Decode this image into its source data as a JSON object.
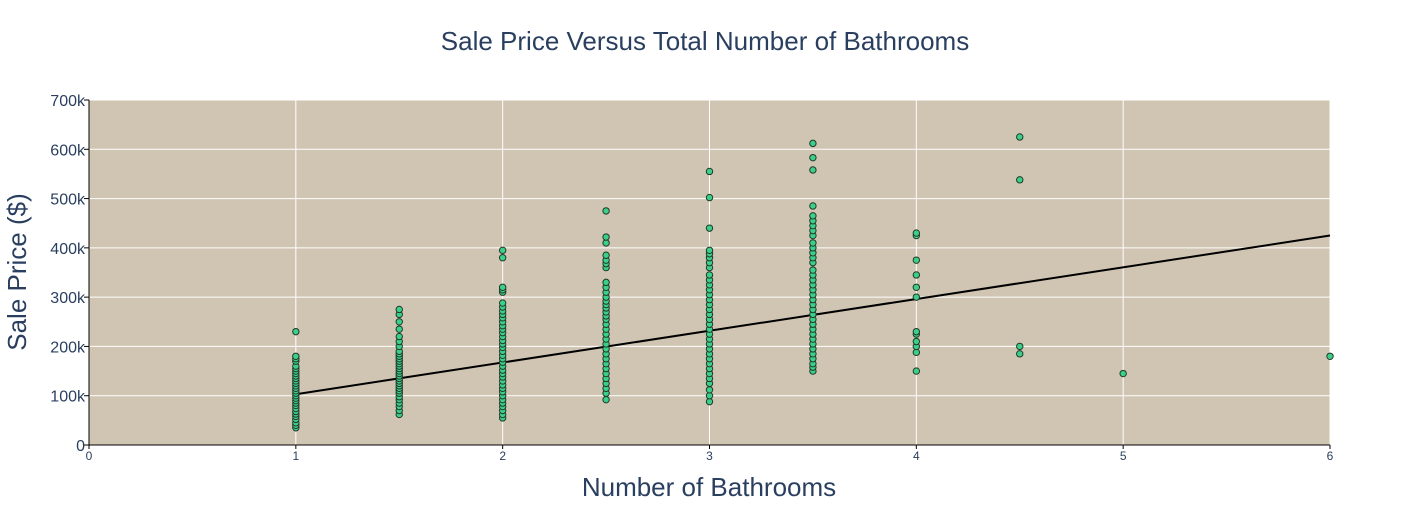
{
  "chart_data": {
    "type": "scatter",
    "title": "Sale Price Versus Total Number of Bathrooms",
    "xlabel": "Number of Bathrooms",
    "ylabel": "Sale Price ($)",
    "xlim": [
      0,
      6
    ],
    "ylim": [
      0,
      700000
    ],
    "x_ticks": [
      0,
      1,
      2,
      3,
      4,
      5,
      6
    ],
    "x_tick_labels": [
      "0",
      "1",
      "2",
      "3",
      "4",
      "5",
      "6"
    ],
    "y_ticks": [
      0,
      100000,
      200000,
      300000,
      400000,
      500000,
      600000,
      700000
    ],
    "y_tick_labels": [
      "0",
      "100k",
      "200k",
      "300k",
      "400k",
      "500k",
      "600k",
      "700k"
    ],
    "grid": true,
    "legend": false,
    "colors": {
      "plot_background": "#d0c4b3",
      "marker_fill": "#3ccf8a",
      "marker_edge": "#1f3a2a",
      "trend_line": "#000000",
      "grid": "#ffffff",
      "text": "#2a3f5f"
    },
    "series": [
      {
        "type": "scatter",
        "groups": [
          {
            "x": 1,
            "y": [
              35000,
              40000,
              45000,
              52000,
              58000,
              63000,
              68000,
              74000,
              80000,
              85000,
              90000,
              95000,
              100000,
              105000,
              110000,
              115000,
              120000,
              125000,
              130000,
              135000,
              140000,
              145000,
              150000,
              155000,
              160000,
              170000,
              175000,
              180000,
              230000
            ]
          },
          {
            "x": 1.5,
            "y": [
              62000,
              70000,
              78000,
              85000,
              92000,
              98000,
              105000,
              110000,
              115000,
              120000,
              125000,
              130000,
              135000,
              140000,
              145000,
              150000,
              155000,
              160000,
              165000,
              170000,
              175000,
              180000,
              185000,
              190000,
              200000,
              210000,
              220000,
              235000,
              250000,
              265000,
              275000
            ]
          },
          {
            "x": 2,
            "y": [
              55000,
              62000,
              70000,
              78000,
              85000,
              92000,
              100000,
              108000,
              115000,
              122000,
              130000,
              138000,
              145000,
              152000,
              160000,
              168000,
              175000,
              182000,
              190000,
              198000,
              205000,
              212000,
              220000,
              228000,
              235000,
              242000,
              250000,
              258000,
              265000,
              272000,
              280000,
              288000,
              310000,
              315000,
              320000,
              380000,
              395000
            ]
          },
          {
            "x": 2.5,
            "y": [
              92000,
              105000,
              115000,
              125000,
              135000,
              145000,
              155000,
              165000,
              175000,
              185000,
              195000,
              205000,
              215000,
              225000,
              235000,
              245000,
              255000,
              262000,
              270000,
              278000,
              285000,
              292000,
              300000,
              310000,
              320000,
              330000,
              360000,
              368000,
              375000,
              385000,
              410000,
              422000,
              475000
            ]
          },
          {
            "x": 3,
            "y": [
              88000,
              100000,
              112000,
              125000,
              135000,
              145000,
              155000,
              165000,
              175000,
              185000,
              195000,
              205000,
              215000,
              225000,
              235000,
              245000,
              255000,
              265000,
              275000,
              285000,
              295000,
              305000,
              315000,
              325000,
              335000,
              345000,
              360000,
              370000,
              380000,
              388000,
              395000,
              440000,
              502000,
              555000
            ]
          },
          {
            "x": 3.5,
            "y": [
              150000,
              158000,
              165000,
              175000,
              185000,
              195000,
              205000,
              215000,
              225000,
              235000,
              245000,
              255000,
              265000,
              275000,
              285000,
              295000,
              305000,
              315000,
              325000,
              335000,
              345000,
              355000,
              370000,
              380000,
              390000,
              400000,
              410000,
              425000,
              435000,
              445000,
              455000,
              465000,
              485000,
              558000,
              583000,
              612000
            ]
          },
          {
            "x": 4,
            "y": [
              150000,
              188000,
              200000,
              210000,
              225000,
              230000,
              300000,
              320000,
              345000,
              375000,
              425000,
              430000
            ]
          },
          {
            "x": 4.5,
            "y": [
              185000,
              200000,
              538000,
              625000
            ]
          },
          {
            "x": 5,
            "y": [
              145000
            ]
          },
          {
            "x": 6,
            "y": [
              180000
            ]
          }
        ]
      },
      {
        "type": "line",
        "x": [
          1,
          6
        ],
        "y": [
          103000,
          425000
        ]
      }
    ]
  }
}
